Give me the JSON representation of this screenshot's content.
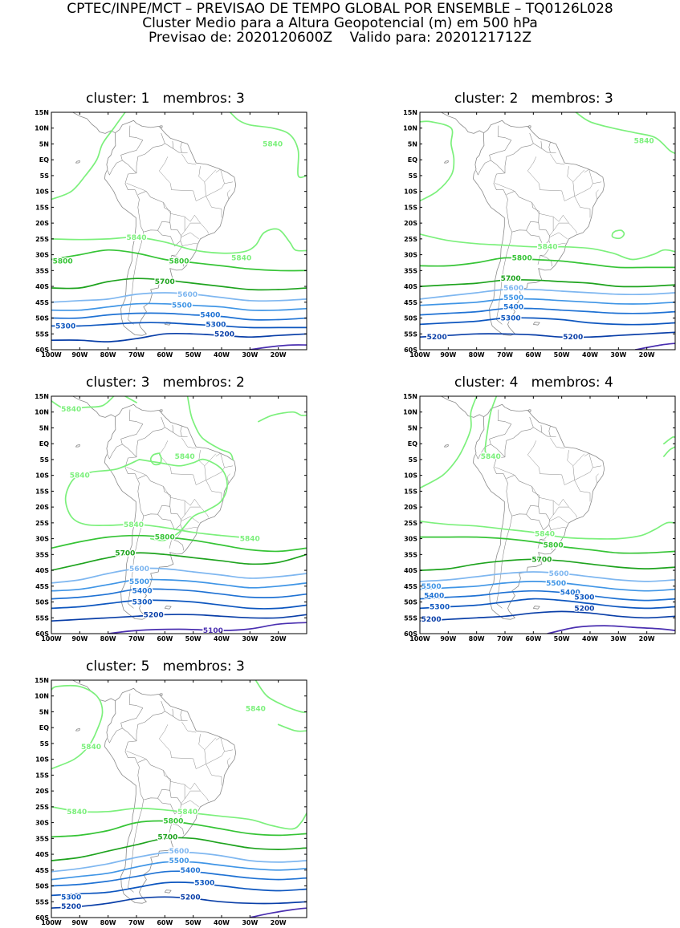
{
  "header": {
    "line1": "CPTEC/INPE/MCT – PREVISAO DE TEMPO GLOBAL POR ENSEMBLE – TQ0126L028",
    "line2": "Cluster Medio para a Altura Geopotencial (m) em 500 hPa",
    "line3": "Previsao de: 2020120600Z    Valido para: 2020121712Z"
  },
  "axes": {
    "lat_ticks": [
      "15N",
      "10N",
      "5N",
      "EQ",
      "5S",
      "10S",
      "15S",
      "20S",
      "25S",
      "30S",
      "35S",
      "40S",
      "45S",
      "50S",
      "55S",
      "60S"
    ],
    "lon_ticks": [
      "100W",
      "90W",
      "80W",
      "70W",
      "60W",
      "50W",
      "40W",
      "30W",
      "20W"
    ],
    "lat_range": [
      -60,
      15
    ],
    "lon_range": [
      -100,
      -10
    ]
  },
  "contour_colors": {
    "5840": "#7cf07c",
    "5800": "#36c436",
    "5700": "#1ea31e",
    "5600": "#7fb7f0",
    "5500": "#3f95e6",
    "5400": "#1f72d4",
    "5300": "#0d56bf",
    "5200": "#0a3fa8",
    "5100": "#4a2fb0"
  },
  "panels": [
    {
      "title": "cluster: 1   membros: 3",
      "labels": [
        {
          "text": "5840",
          "lon": -22,
          "lat": 5
        },
        {
          "text": "5840",
          "lon": -70,
          "lat": -24.5
        },
        {
          "text": "5840",
          "lon": -33,
          "lat": -31
        },
        {
          "text": "5800",
          "lon": -96,
          "lat": -32
        },
        {
          "text": "5800",
          "lon": -55,
          "lat": -32
        },
        {
          "text": "5700",
          "lon": -60,
          "lat": -38.5
        },
        {
          "text": "5600",
          "lon": -52,
          "lat": -42.5
        },
        {
          "text": "5500",
          "lon": -54,
          "lat": -46
        },
        {
          "text": "5400",
          "lon": -44,
          "lat": -49
        },
        {
          "text": "5300",
          "lon": -95,
          "lat": -52.5
        },
        {
          "text": "5300",
          "lon": -42,
          "lat": -52
        },
        {
          "text": "5200",
          "lon": -39,
          "lat": -55
        }
      ]
    },
    {
      "title": "cluster: 2   membros: 3",
      "labels": [
        {
          "text": "5840",
          "lon": -21,
          "lat": 6
        },
        {
          "text": "5840",
          "lon": -55,
          "lat": -27.5
        },
        {
          "text": "5800",
          "lon": -64,
          "lat": -31
        },
        {
          "text": "5700",
          "lon": -68,
          "lat": -37.5
        },
        {
          "text": "5600",
          "lon": -67,
          "lat": -40.5
        },
        {
          "text": "5500",
          "lon": -67,
          "lat": -43.5
        },
        {
          "text": "5400",
          "lon": -67,
          "lat": -46.5
        },
        {
          "text": "5300",
          "lon": -68,
          "lat": -50
        },
        {
          "text": "5200",
          "lon": -94,
          "lat": -56
        },
        {
          "text": "5200",
          "lon": -46,
          "lat": -56
        }
      ]
    },
    {
      "title": "cluster: 3   membros: 2",
      "labels": [
        {
          "text": "5840",
          "lon": -93,
          "lat": 11
        },
        {
          "text": "5840",
          "lon": -53,
          "lat": -4
        },
        {
          "text": "5840",
          "lon": -90,
          "lat": -10
        },
        {
          "text": "5840",
          "lon": -71,
          "lat": -25.5
        },
        {
          "text": "5840",
          "lon": -30,
          "lat": -30
        },
        {
          "text": "5800",
          "lon": -60,
          "lat": -29.5
        },
        {
          "text": "5700",
          "lon": -74,
          "lat": -34.5
        },
        {
          "text": "5600",
          "lon": -69,
          "lat": -39.5
        },
        {
          "text": "5500",
          "lon": -69,
          "lat": -43.5
        },
        {
          "text": "5400",
          "lon": -68,
          "lat": -46.5
        },
        {
          "text": "5300",
          "lon": -68,
          "lat": -50
        },
        {
          "text": "5200",
          "lon": -64,
          "lat": -54
        },
        {
          "text": "5100",
          "lon": -43,
          "lat": -59
        }
      ]
    },
    {
      "title": "cluster: 4   membros: 4",
      "labels": [
        {
          "text": "5840",
          "lon": -75,
          "lat": -4
        },
        {
          "text": "5840",
          "lon": -56,
          "lat": -28.5
        },
        {
          "text": "5800",
          "lon": -53,
          "lat": -32
        },
        {
          "text": "5700",
          "lon": -57,
          "lat": -36.5
        },
        {
          "text": "5600",
          "lon": -51,
          "lat": -41
        },
        {
          "text": "5500",
          "lon": -96,
          "lat": -45
        },
        {
          "text": "5500",
          "lon": -52,
          "lat": -44
        },
        {
          "text": "5400",
          "lon": -95,
          "lat": -48
        },
        {
          "text": "5400",
          "lon": -47,
          "lat": -47
        },
        {
          "text": "5300",
          "lon": -93,
          "lat": -51.5
        },
        {
          "text": "5300",
          "lon": -42,
          "lat": -48.5
        },
        {
          "text": "5200",
          "lon": -96,
          "lat": -55.5
        },
        {
          "text": "5200",
          "lon": -42,
          "lat": -52
        }
      ]
    },
    {
      "title": "cluster: 5   membros: 3",
      "labels": [
        {
          "text": "5840",
          "lon": -28,
          "lat": 6
        },
        {
          "text": "5840",
          "lon": -86,
          "lat": -6
        },
        {
          "text": "5840",
          "lon": -91,
          "lat": -26.5
        },
        {
          "text": "5840",
          "lon": -52,
          "lat": -26.5
        },
        {
          "text": "5800",
          "lon": -57,
          "lat": -29.5
        },
        {
          "text": "5700",
          "lon": -59,
          "lat": -34.5
        },
        {
          "text": "5600",
          "lon": -55,
          "lat": -39
        },
        {
          "text": "5500",
          "lon": -55,
          "lat": -42
        },
        {
          "text": "5400",
          "lon": -51,
          "lat": -45
        },
        {
          "text": "5300",
          "lon": -93,
          "lat": -53.5
        },
        {
          "text": "5300",
          "lon": -46,
          "lat": -49
        },
        {
          "text": "5200",
          "lon": -93,
          "lat": -56.5
        },
        {
          "text": "5200",
          "lon": -51,
          "lat": -53.5
        }
      ]
    }
  ]
}
